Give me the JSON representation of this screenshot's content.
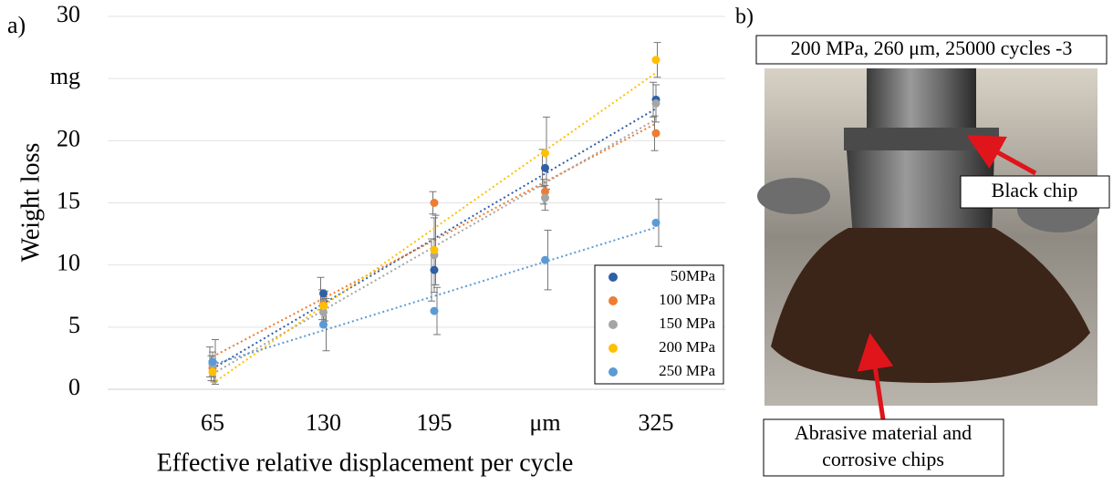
{
  "chart_data": {
    "type": "scatter",
    "panel_label": "a)",
    "y_label": "Weight loss",
    "x_label": "Effective relative displacement per cycle",
    "categories": [
      "65",
      "130",
      "195",
      "μm",
      "325"
    ],
    "ylim": [
      0,
      30
    ],
    "yticks": [
      0,
      5,
      10,
      15,
      20,
      {
        "value": 25,
        "label": "mg"
      },
      30
    ],
    "grid": true,
    "legend": "lower right",
    "trendline": true,
    "series": [
      {
        "name": "50MPa",
        "color": "#2f5fa7",
        "values": [
          2.2,
          7.7,
          9.6,
          17.8,
          23.3
        ],
        "errors": [
          1.2,
          1.3,
          2.5,
          1.5,
          1.4
        ]
      },
      {
        "name": "100 MPa",
        "color": "#ed7d31",
        "values": [
          1.7,
          6.8,
          15.0,
          15.9,
          20.6
        ],
        "errors": [
          1.0,
          1.2,
          0.9,
          1.0,
          1.4
        ]
      },
      {
        "name": "150 MPa",
        "color": "#a5a5a5",
        "values": [
          2.0,
          6.2,
          10.8,
          15.4,
          23.0
        ],
        "errors": [
          1.0,
          1.0,
          3.0,
          1.0,
          1.5
        ]
      },
      {
        "name": "200 MPa",
        "color": "#ffc000",
        "values": [
          1.4,
          6.7,
          11.2,
          19.0,
          26.5
        ],
        "errors": [
          0.8,
          1.2,
          2.8,
          2.9,
          1.4
        ]
      },
      {
        "name": "250 MPa",
        "color": "#5b9bd5",
        "values": [
          2.2,
          5.2,
          6.3,
          10.4,
          13.4
        ],
        "errors": [
          1.8,
          2.1,
          1.9,
          2.4,
          1.9
        ]
      }
    ]
  },
  "photo": {
    "panel_label": "b)",
    "caption": "200 MPa, 260 μm, 25000 cycles -3",
    "callouts": {
      "black_chip": "Black chip",
      "abrasive": [
        "Abrasive material and",
        "corrosive chips"
      ]
    }
  }
}
